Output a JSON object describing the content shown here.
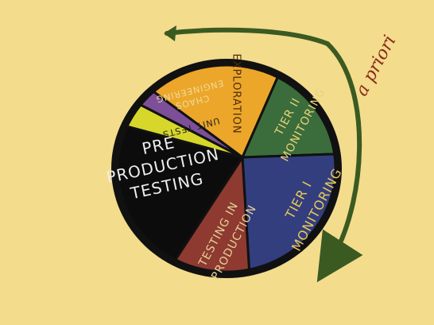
{
  "diagram": {
    "colors": {
      "background": "#f3dc8c",
      "outline": "#111111",
      "arrow": "#3b5a22",
      "apriori_text": "#8a2a1c"
    },
    "annotation": {
      "text": "a priori"
    },
    "slices": [
      {
        "id": "exploration",
        "label": "EXPLORATION",
        "color": "#eca62a",
        "text_color": "#4a2d0a",
        "lines": [
          "EXPLORATION"
        ]
      },
      {
        "id": "tier2",
        "label": "TIER II MONITORING",
        "color": "#3b6d3c",
        "text_color": "#e9d27a",
        "lines": [
          "TIER II",
          "MONITORING"
        ]
      },
      {
        "id": "tier1",
        "label": "TIER I MONITORING",
        "color": "#333e7e",
        "text_color": "#e9c95a",
        "lines": [
          "TIER I",
          "MONITORING"
        ]
      },
      {
        "id": "testing-in-production",
        "label": "TESTING IN PRODUCTION",
        "color": "#8e3a30",
        "text_color": "#e6d39a",
        "lines": [
          "TESTING IN",
          "PRODUCTION"
        ]
      },
      {
        "id": "preproduction",
        "label": "PRE PRODUCTION TESTING",
        "color": "#0c0c0c",
        "text_color": "#eeeeee",
        "lines": [
          "PRE",
          "PRODUCTION",
          "TESTING"
        ]
      },
      {
        "id": "unit-tests",
        "label": "UNIT TESTS",
        "color": "#d6d72a",
        "text_color": "#222222",
        "lines": [
          "UNIT TESTS"
        ]
      },
      {
        "id": "chaos-engineering",
        "label": "CHAOS ENGINEERING",
        "color": "#7d4f98",
        "text_color": "#eddc9a",
        "lines": [
          "CHAOS",
          "ENGINEERING"
        ]
      }
    ]
  }
}
